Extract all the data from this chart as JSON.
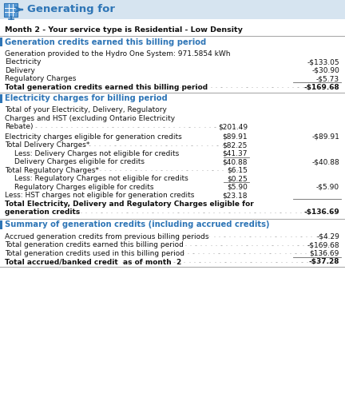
{
  "title": "Generating for",
  "subtitle": "Month 2 - Your service type is Residential - Low Density",
  "header_color": "#2E75B6",
  "bg_color": "#FFFFFF",
  "light_blue_bg": "#D6E4F0",
  "sections": [
    {
      "heading": "Generation credits earned this billing period",
      "rows": [
        {
          "indent": 0,
          "text": "Generation provided to the Hydro One System: 971.5854 kWh",
          "col1": "",
          "col2": "",
          "bold": false,
          "dots": false
        },
        {
          "indent": 0,
          "text": "Electricity",
          "col1": "",
          "col2": "-$133.05",
          "bold": false,
          "dots": false
        },
        {
          "indent": 0,
          "text": "Delivery",
          "col1": "",
          "col2": "-$30.90",
          "bold": false,
          "dots": false
        },
        {
          "indent": 0,
          "text": "Regulatory Charges",
          "col1": "",
          "col2": "-$5.73",
          "bold": false,
          "dots": false
        },
        {
          "indent": 0,
          "text": "Total generation credits earned this billing period",
          "col1": "",
          "col2": "-$169.68",
          "bold": true,
          "dots": true,
          "line_above_col2": true
        }
      ]
    },
    {
      "heading": "Electricity charges for billing period",
      "rows": [
        {
          "indent": 0,
          "text": "Total of your Electricity, Delivery, Regulatory\nCharges and HST (excluding Ontario Electricity\nRebate)",
          "col1": "$201.49",
          "col2": "",
          "bold": false,
          "dots": true
        },
        {
          "indent": 0,
          "text": "Electricity charges eligible for generation credits",
          "col1": "$89.91",
          "col2": "-$89.91",
          "bold": false,
          "dots": false
        },
        {
          "indent": 0,
          "text": "Total Delivery Charges*",
          "col1": "$82.25",
          "col2": "",
          "bold": false,
          "dots": true
        },
        {
          "indent": 1,
          "text": "Less: Delivery Charges not eligible for credits",
          "col1": "$41.37",
          "col2": "",
          "bold": false,
          "dots": false
        },
        {
          "indent": 1,
          "text": "Delivery Charges eligible for credits",
          "col1": "$40.88",
          "col2": "-$40.88",
          "bold": false,
          "dots": false,
          "line_above_col1": true
        },
        {
          "indent": 0,
          "text": "Total Regulatory Charges*",
          "col1": "$6.15",
          "col2": "",
          "bold": false,
          "dots": true
        },
        {
          "indent": 1,
          "text": "Less: Regulatory Charges not eligible for credits",
          "col1": "$0.25",
          "col2": "",
          "bold": false,
          "dots": false
        },
        {
          "indent": 1,
          "text": "Regulatory Charges eligible for credits",
          "col1": "$5.90",
          "col2": "-$5.90",
          "bold": false,
          "dots": false,
          "line_above_col1": true
        },
        {
          "indent": 0,
          "text": "Less: HST charges not eligible for generation credits",
          "col1": "$23.18",
          "col2": "",
          "bold": false,
          "dots": false
        },
        {
          "indent": 0,
          "text": "Total Electricity, Delivery and Regulatory Charges eligible for\ngeneration credits",
          "col1": "",
          "col2": "-$136.69",
          "bold": true,
          "dots": true,
          "line_above_col2": true
        }
      ]
    },
    {
      "heading": "Summary of generation credits (including accrued credits)",
      "rows": [
        {
          "indent": 0,
          "text": "Accrued generation credits from previous billing periods",
          "col1": "",
          "col2": "-$4.29",
          "bold": false,
          "dots": true
        },
        {
          "indent": 0,
          "text": "Total generation credits earned this billing period",
          "col1": "",
          "col2": "-$169.68",
          "bold": false,
          "dots": true
        },
        {
          "indent": 0,
          "text": "Total generation credits used in this billing period",
          "col1": "",
          "col2": "$136.69",
          "bold": false,
          "dots": true
        },
        {
          "indent": 0,
          "text": "Total accrued/banked credit  as of month  2",
          "col1": "",
          "col2": "-$37.28",
          "bold": true,
          "dots": true,
          "line_above_col2": true
        }
      ]
    }
  ],
  "figsize": [
    4.32,
    5.12
  ],
  "dpi": 100
}
